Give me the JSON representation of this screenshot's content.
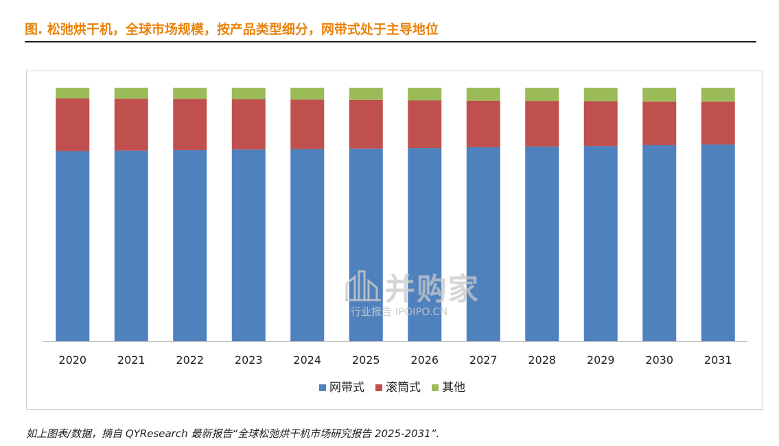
{
  "header": {
    "title": "图.  松弛烘干机，全球市场规模，按产品类型细分，网带式处于主导地位"
  },
  "footer": {
    "note": "如上图表/数据，摘自 QYResearch 最新报告“全球松弛烘干机市场研究报告 2025-2031”."
  },
  "watermark": {
    "main": "并购家",
    "sub": "行业报告 IPOIPO.CN"
  },
  "colors": {
    "title": "#E8820C",
    "mesh_belt": "#4F81BD",
    "drum": "#C0504D",
    "other": "#9BBB59"
  },
  "chart_data": {
    "type": "bar",
    "stacked": true,
    "percent_stacked": true,
    "title": "",
    "xlabel": "",
    "ylabel": "",
    "ylim": [
      0,
      100
    ],
    "grid": false,
    "legend_position": "bottom",
    "categories": [
      "2020",
      "2021",
      "2022",
      "2023",
      "2024",
      "2025",
      "2026",
      "2027",
      "2028",
      "2029",
      "2030",
      "2031"
    ],
    "series": [
      {
        "name": "网带式",
        "color": "#4F81BD",
        "values": [
          75.0,
          75.2,
          75.4,
          75.6,
          75.8,
          76.0,
          76.2,
          76.5,
          76.8,
          77.0,
          77.3,
          77.6
        ]
      },
      {
        "name": "滚筒式",
        "color": "#C0504D",
        "values": [
          20.8,
          20.5,
          20.2,
          19.8,
          19.5,
          19.2,
          18.8,
          18.4,
          18.0,
          17.6,
          17.2,
          16.9
        ]
      },
      {
        "name": "其他",
        "color": "#9BBB59",
        "values": [
          4.2,
          4.3,
          4.4,
          4.6,
          4.7,
          4.8,
          5.0,
          5.1,
          5.2,
          5.4,
          5.5,
          5.5
        ]
      }
    ]
  }
}
